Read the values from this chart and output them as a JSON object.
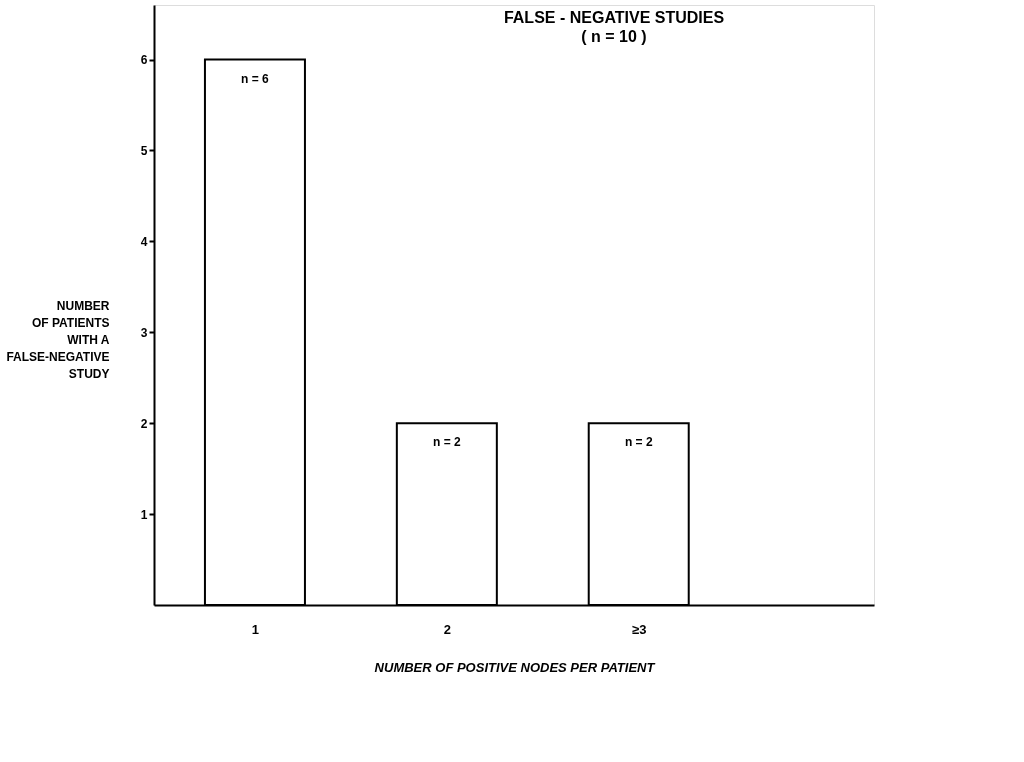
{
  "chart_data": {
    "type": "bar",
    "title": "FALSE - NEGATIVE STUDIES",
    "subtitle": "( n = 10 )",
    "xlabel": "NUMBER OF POSITIVE NODES PER PATIENT",
    "ylabel": "NUMBER\nOF PATIENTS\nWITH A\nFALSE-NEGATIVE\nSTUDY",
    "categories": [
      "1",
      "2",
      "≥3"
    ],
    "series": [
      {
        "color": "#ffffff",
        "values": [
          6,
          2,
          2
        ],
        "value_labels": [
          "n = 6",
          "n = 2",
          "n = 2"
        ]
      }
    ],
    "ylim": [
      0,
      6.6
    ],
    "yticks": [
      1,
      2,
      3,
      4,
      5,
      6
    ],
    "grid": false
  }
}
